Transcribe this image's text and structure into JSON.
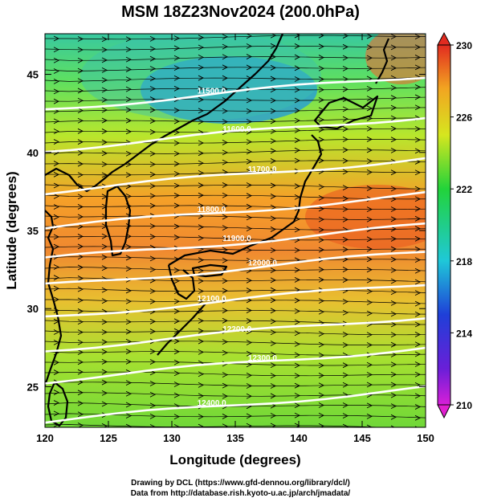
{
  "title": "MSM 18Z23Nov2024 (200.0hPa)",
  "x_axis": {
    "label": "Longitude (degrees)",
    "ticks": [
      "120",
      "125",
      "130",
      "135",
      "140",
      "145",
      "150"
    ]
  },
  "y_axis": {
    "label": "Latitude  (degrees)",
    "ticks": [
      "25",
      "30",
      "35",
      "40",
      "45"
    ]
  },
  "colorbar": {
    "ticks": [
      "230",
      "226",
      "222",
      "218",
      "214",
      "210"
    ],
    "min": 210,
    "max": 230
  },
  "contours": [
    {
      "label": "11500.0",
      "lat_at_140": 44.2
    },
    {
      "label": "11600.0",
      "lat_at_140": 41.6
    },
    {
      "label": "11700.0",
      "lat_at_140": 38.9
    },
    {
      "label": "11800.0",
      "lat_at_140": 36.6
    },
    {
      "label": "11900.0",
      "lat_at_140": 34.6
    },
    {
      "label": "12000.0",
      "lat_at_140": 32.9
    },
    {
      "label": "12100.0",
      "lat_at_140": 30.9
    },
    {
      "label": "12200.0",
      "lat_at_140": 28.8
    },
    {
      "label": "12300.0",
      "lat_at_140": 26.8
    },
    {
      "label": "12400.0",
      "lat_at_140": 24.2
    }
  ],
  "chart_data": {
    "type": "heatmap",
    "title": "MSM 18Z23Nov2024 (200.0hPa)",
    "xlabel": "Longitude (degrees)",
    "ylabel": "Latitude  (degrees)",
    "xlim": [
      120,
      150
    ],
    "ylim": [
      22.4,
      47.6
    ],
    "colorbar_range": [
      210,
      230
    ],
    "grid": false
  },
  "footer": {
    "line1": "Drawing by DCL (https://www.gfd-dennou.org/library/dcl/)",
    "line2": "Data from http://database.rish.kyoto-u.ac.jp/arch/jmadata/"
  }
}
